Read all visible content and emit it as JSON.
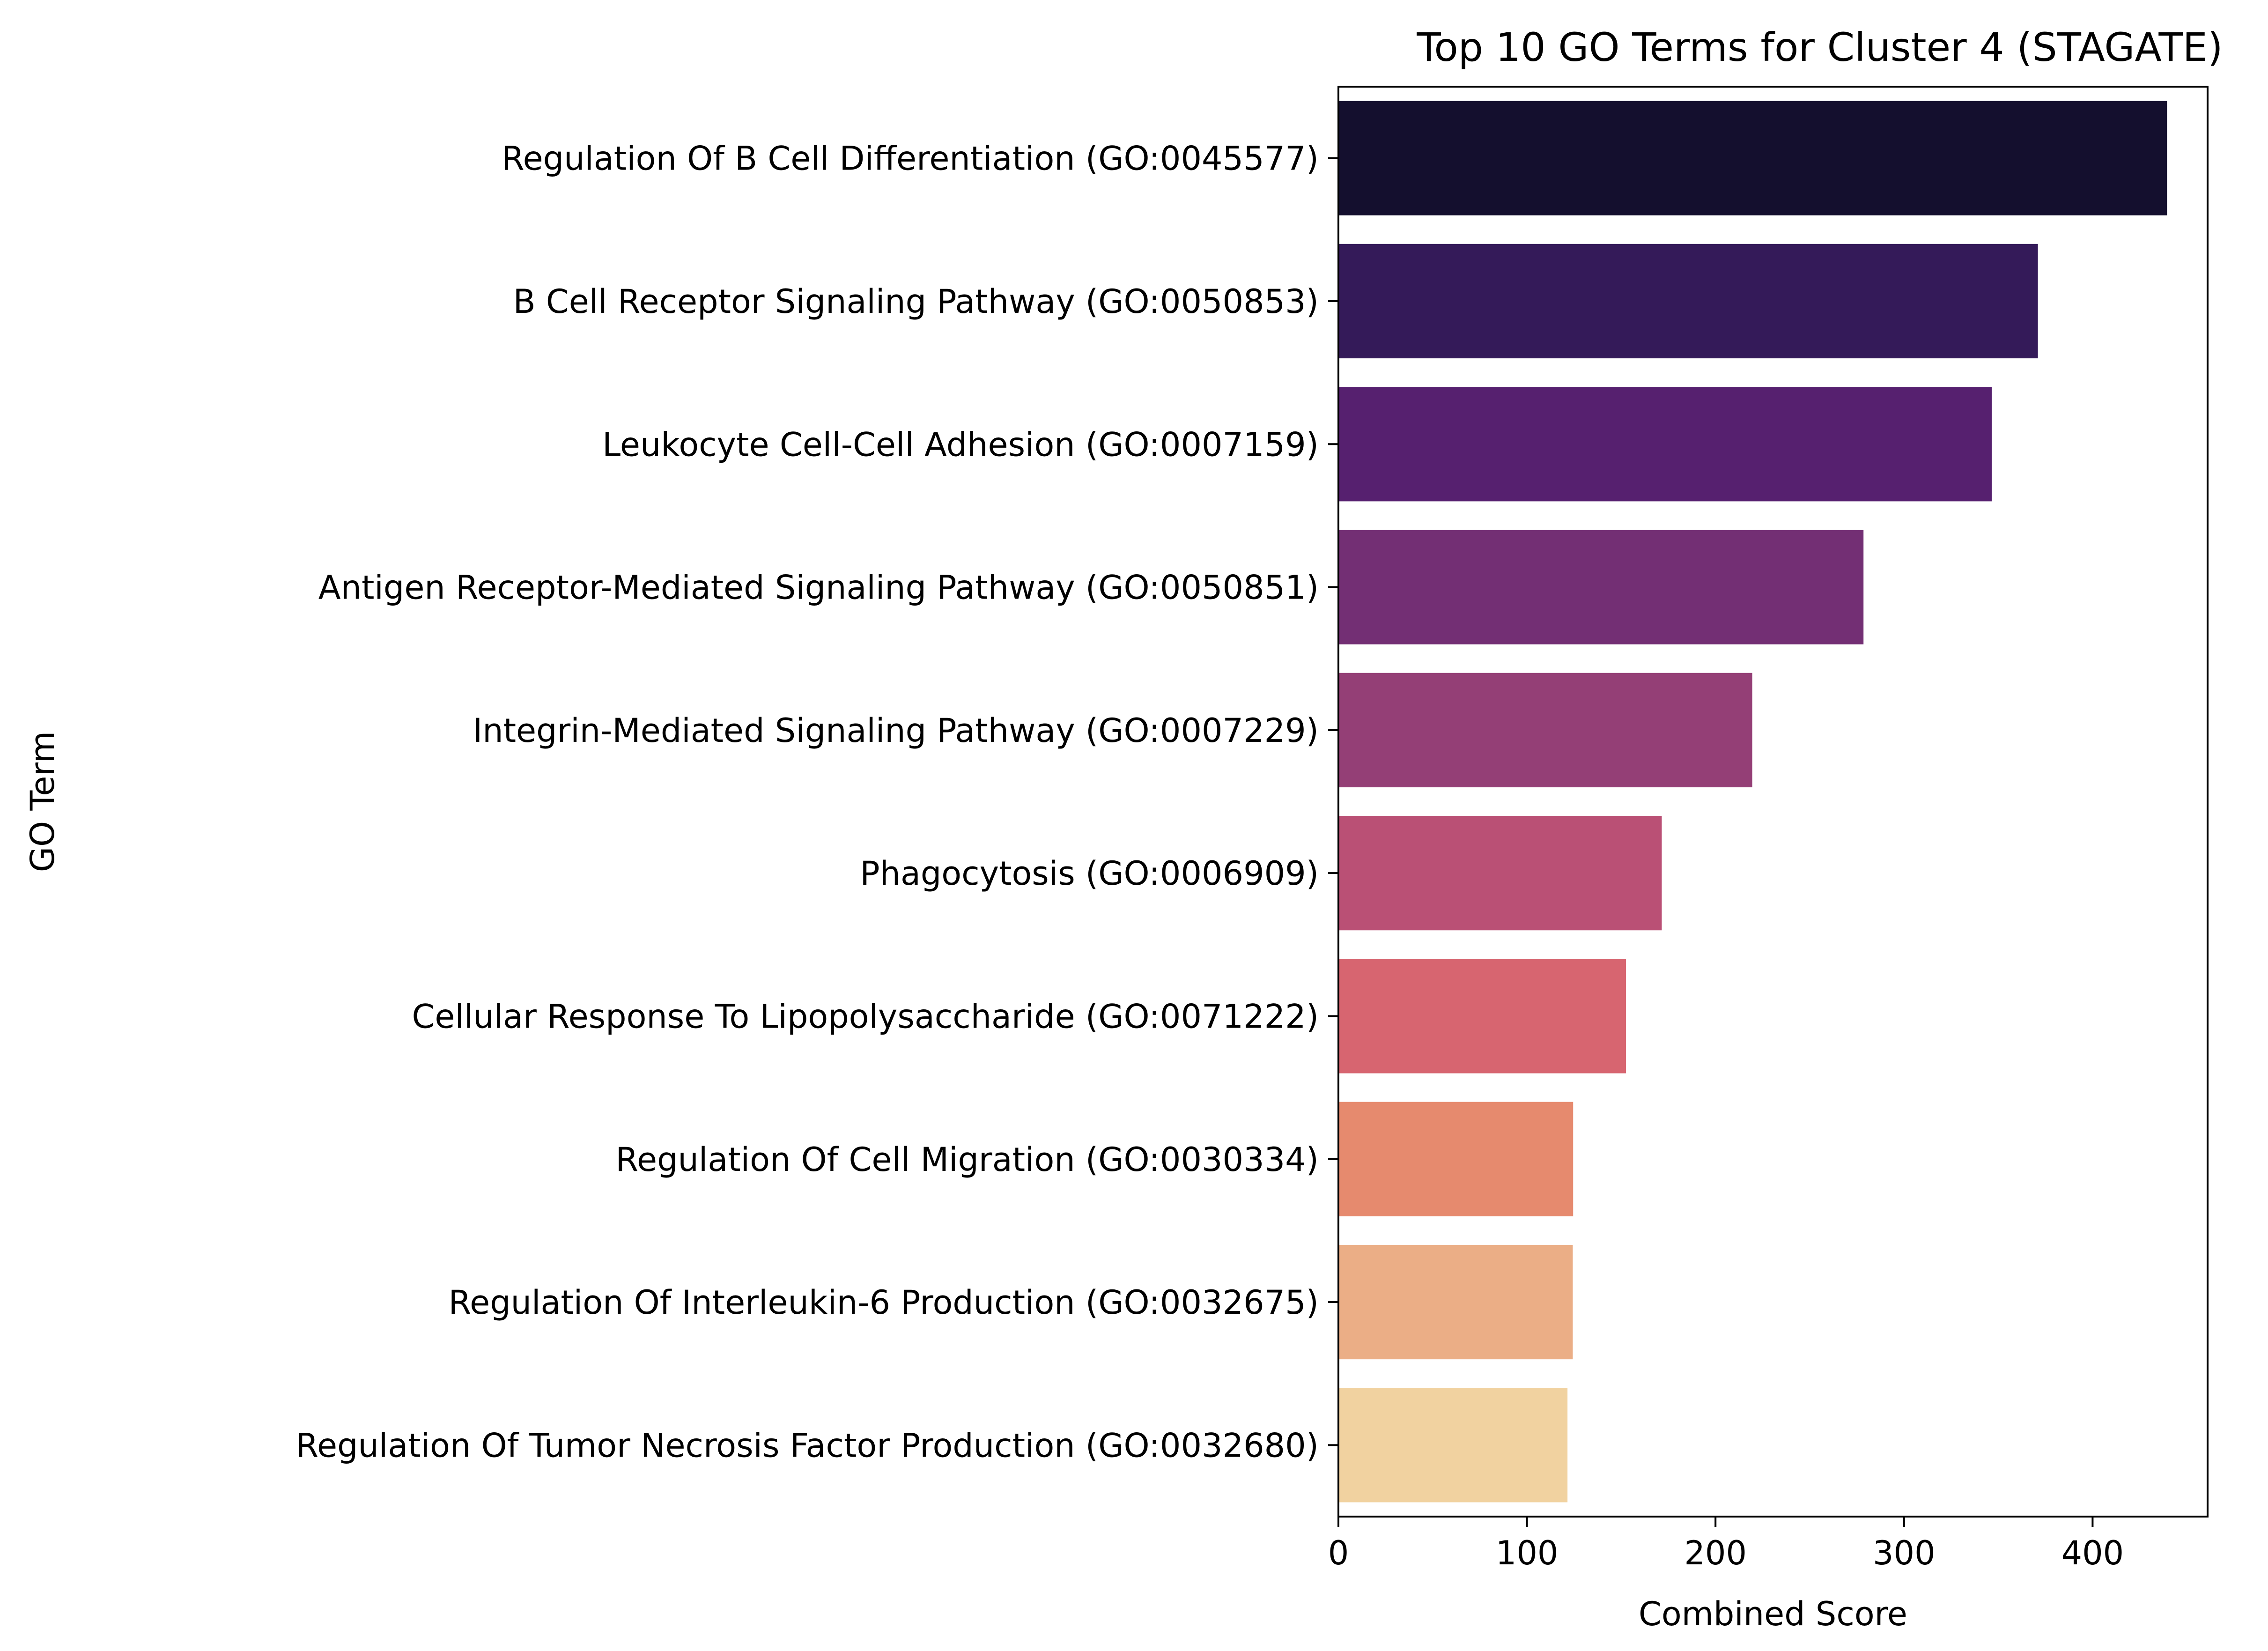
{
  "chart_data": {
    "type": "bar",
    "orientation": "horizontal",
    "title": "Top 10 GO Terms for Cluster 4 (STAGATE)",
    "xlabel": "Combined Score",
    "ylabel": "GO Term",
    "xlim": [
      0,
      461
    ],
    "xticks": [
      0,
      100,
      200,
      300,
      400
    ],
    "grid": false,
    "categories": [
      "Regulation Of B Cell Differentiation (GO:0045577)",
      "B Cell Receptor Signaling Pathway (GO:0050853)",
      "Leukocyte Cell-Cell Adhesion (GO:0007159)",
      "Antigen Receptor-Mediated Signaling Pathway (GO:0050851)",
      "Integrin-Mediated Signaling Pathway (GO:0007229)",
      "Phagocytosis (GO:0006909)",
      "Cellular Response To Lipopolysaccharide (GO:0071222)",
      "Regulation Of Cell Migration (GO:0030334)",
      "Regulation Of Interleukin-6 Production (GO:0032675)",
      "Regulation Of Tumor Necrosis Factor Production (GO:0032680)"
    ],
    "values": [
      439.5,
      371.0,
      346.5,
      278.5,
      219.5,
      171.5,
      152.5,
      124.5,
      124.3,
      121.5
    ],
    "colors": [
      "#140f2e",
      "#341a59",
      "#56206f",
      "#732f74",
      "#943f76",
      "#ba5075",
      "#d76570",
      "#e68a6e",
      "#ebae86",
      "#f1d2a0"
    ]
  }
}
